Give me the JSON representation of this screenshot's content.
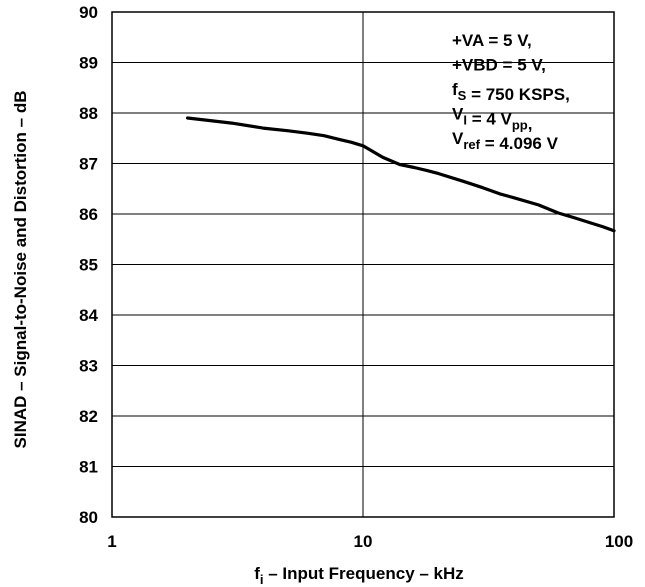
{
  "chart_data": {
    "type": "line",
    "xscale": "log",
    "xlim": [
      1,
      100
    ],
    "ylim": [
      80,
      90
    ],
    "grid": true,
    "xticks": [
      "1",
      "10",
      "100"
    ],
    "yticks": [
      "80",
      "81",
      "82",
      "83",
      "84",
      "85",
      "86",
      "87",
      "88",
      "89",
      "90"
    ],
    "xlabel": {
      "main": "f",
      "sub": "i",
      "rest": " – Input Frequency – kHz"
    },
    "ylabel": "SINAD – Signal-to-Noise and Distortion – dB",
    "series": [
      {
        "x": [
          2,
          3,
          4,
          5,
          6,
          7,
          8,
          9,
          10,
          12,
          14,
          16,
          18,
          20,
          25,
          30,
          35,
          40,
          50,
          60,
          70,
          80,
          90,
          100
        ],
        "y": [
          87.9,
          87.8,
          87.7,
          87.65,
          87.6,
          87.55,
          87.48,
          87.42,
          87.35,
          87.12,
          86.98,
          86.92,
          86.86,
          86.8,
          86.65,
          86.52,
          86.4,
          86.32,
          86.18,
          86.02,
          85.92,
          85.83,
          85.75,
          85.67
        ]
      }
    ],
    "annotations": [
      {
        "parts": [
          {
            "t": "+VA = 5 V,"
          }
        ]
      },
      {
        "parts": [
          {
            "t": "+VBD = 5 V,"
          }
        ]
      },
      {
        "parts": [
          {
            "t": "f"
          },
          {
            "t": "S",
            "sub": true
          },
          {
            "t": " = 750 KSPS,"
          }
        ]
      },
      {
        "parts": [
          {
            "t": "V"
          },
          {
            "t": "I",
            "sub": true
          },
          {
            "t": " = 4 V"
          },
          {
            "t": "pp",
            "sub": true
          },
          {
            "t": ","
          }
        ]
      },
      {
        "parts": [
          {
            "t": "V"
          },
          {
            "t": "ref",
            "sub": true
          },
          {
            "t": " = 4.096 V"
          }
        ]
      }
    ]
  }
}
